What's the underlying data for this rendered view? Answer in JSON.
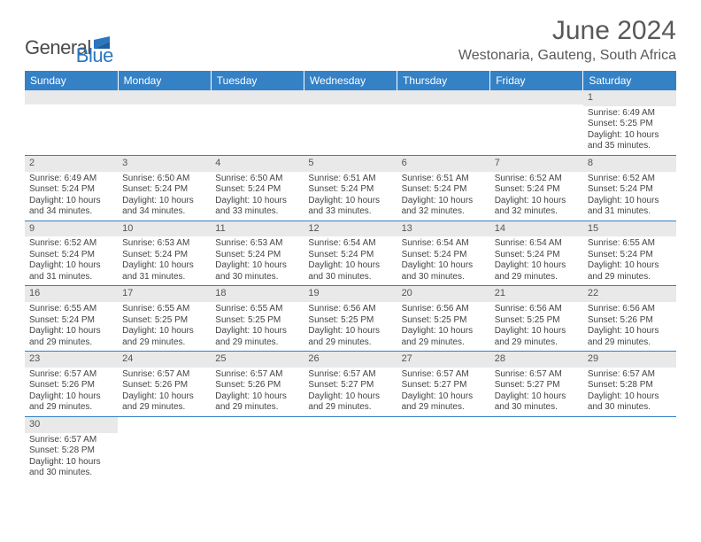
{
  "brand": {
    "name_a": "General",
    "name_b": "Blue",
    "flag_color": "#2a77c0"
  },
  "title": "June 2024",
  "location": "Westonaria, Gauteng, South Africa",
  "colors": {
    "header_bg": "#3481c6",
    "header_fg": "#ffffff",
    "daynum_bg": "#e9e9e9",
    "text": "#444444",
    "rule": "#3481c6"
  },
  "font": {
    "family": "Arial",
    "title_size_pt": 22,
    "location_size_pt": 12,
    "day_header_size_pt": 9,
    "body_size_pt": 7.5
  },
  "day_headers": [
    "Sunday",
    "Monday",
    "Tuesday",
    "Wednesday",
    "Thursday",
    "Friday",
    "Saturday"
  ],
  "weeks": [
    [
      null,
      null,
      null,
      null,
      null,
      null,
      {
        "n": "1",
        "sr": "Sunrise: 6:49 AM",
        "ss": "Sunset: 5:25 PM",
        "d1": "Daylight: 10 hours",
        "d2": "and 35 minutes."
      }
    ],
    [
      {
        "n": "2",
        "sr": "Sunrise: 6:49 AM",
        "ss": "Sunset: 5:24 PM",
        "d1": "Daylight: 10 hours",
        "d2": "and 34 minutes."
      },
      {
        "n": "3",
        "sr": "Sunrise: 6:50 AM",
        "ss": "Sunset: 5:24 PM",
        "d1": "Daylight: 10 hours",
        "d2": "and 34 minutes."
      },
      {
        "n": "4",
        "sr": "Sunrise: 6:50 AM",
        "ss": "Sunset: 5:24 PM",
        "d1": "Daylight: 10 hours",
        "d2": "and 33 minutes."
      },
      {
        "n": "5",
        "sr": "Sunrise: 6:51 AM",
        "ss": "Sunset: 5:24 PM",
        "d1": "Daylight: 10 hours",
        "d2": "and 33 minutes."
      },
      {
        "n": "6",
        "sr": "Sunrise: 6:51 AM",
        "ss": "Sunset: 5:24 PM",
        "d1": "Daylight: 10 hours",
        "d2": "and 32 minutes."
      },
      {
        "n": "7",
        "sr": "Sunrise: 6:52 AM",
        "ss": "Sunset: 5:24 PM",
        "d1": "Daylight: 10 hours",
        "d2": "and 32 minutes."
      },
      {
        "n": "8",
        "sr": "Sunrise: 6:52 AM",
        "ss": "Sunset: 5:24 PM",
        "d1": "Daylight: 10 hours",
        "d2": "and 31 minutes."
      }
    ],
    [
      {
        "n": "9",
        "sr": "Sunrise: 6:52 AM",
        "ss": "Sunset: 5:24 PM",
        "d1": "Daylight: 10 hours",
        "d2": "and 31 minutes."
      },
      {
        "n": "10",
        "sr": "Sunrise: 6:53 AM",
        "ss": "Sunset: 5:24 PM",
        "d1": "Daylight: 10 hours",
        "d2": "and 31 minutes."
      },
      {
        "n": "11",
        "sr": "Sunrise: 6:53 AM",
        "ss": "Sunset: 5:24 PM",
        "d1": "Daylight: 10 hours",
        "d2": "and 30 minutes."
      },
      {
        "n": "12",
        "sr": "Sunrise: 6:54 AM",
        "ss": "Sunset: 5:24 PM",
        "d1": "Daylight: 10 hours",
        "d2": "and 30 minutes."
      },
      {
        "n": "13",
        "sr": "Sunrise: 6:54 AM",
        "ss": "Sunset: 5:24 PM",
        "d1": "Daylight: 10 hours",
        "d2": "and 30 minutes."
      },
      {
        "n": "14",
        "sr": "Sunrise: 6:54 AM",
        "ss": "Sunset: 5:24 PM",
        "d1": "Daylight: 10 hours",
        "d2": "and 29 minutes."
      },
      {
        "n": "15",
        "sr": "Sunrise: 6:55 AM",
        "ss": "Sunset: 5:24 PM",
        "d1": "Daylight: 10 hours",
        "d2": "and 29 minutes."
      }
    ],
    [
      {
        "n": "16",
        "sr": "Sunrise: 6:55 AM",
        "ss": "Sunset: 5:24 PM",
        "d1": "Daylight: 10 hours",
        "d2": "and 29 minutes."
      },
      {
        "n": "17",
        "sr": "Sunrise: 6:55 AM",
        "ss": "Sunset: 5:25 PM",
        "d1": "Daylight: 10 hours",
        "d2": "and 29 minutes."
      },
      {
        "n": "18",
        "sr": "Sunrise: 6:55 AM",
        "ss": "Sunset: 5:25 PM",
        "d1": "Daylight: 10 hours",
        "d2": "and 29 minutes."
      },
      {
        "n": "19",
        "sr": "Sunrise: 6:56 AM",
        "ss": "Sunset: 5:25 PM",
        "d1": "Daylight: 10 hours",
        "d2": "and 29 minutes."
      },
      {
        "n": "20",
        "sr": "Sunrise: 6:56 AM",
        "ss": "Sunset: 5:25 PM",
        "d1": "Daylight: 10 hours",
        "d2": "and 29 minutes."
      },
      {
        "n": "21",
        "sr": "Sunrise: 6:56 AM",
        "ss": "Sunset: 5:25 PM",
        "d1": "Daylight: 10 hours",
        "d2": "and 29 minutes."
      },
      {
        "n": "22",
        "sr": "Sunrise: 6:56 AM",
        "ss": "Sunset: 5:26 PM",
        "d1": "Daylight: 10 hours",
        "d2": "and 29 minutes."
      }
    ],
    [
      {
        "n": "23",
        "sr": "Sunrise: 6:57 AM",
        "ss": "Sunset: 5:26 PM",
        "d1": "Daylight: 10 hours",
        "d2": "and 29 minutes."
      },
      {
        "n": "24",
        "sr": "Sunrise: 6:57 AM",
        "ss": "Sunset: 5:26 PM",
        "d1": "Daylight: 10 hours",
        "d2": "and 29 minutes."
      },
      {
        "n": "25",
        "sr": "Sunrise: 6:57 AM",
        "ss": "Sunset: 5:26 PM",
        "d1": "Daylight: 10 hours",
        "d2": "and 29 minutes."
      },
      {
        "n": "26",
        "sr": "Sunrise: 6:57 AM",
        "ss": "Sunset: 5:27 PM",
        "d1": "Daylight: 10 hours",
        "d2": "and 29 minutes."
      },
      {
        "n": "27",
        "sr": "Sunrise: 6:57 AM",
        "ss": "Sunset: 5:27 PM",
        "d1": "Daylight: 10 hours",
        "d2": "and 29 minutes."
      },
      {
        "n": "28",
        "sr": "Sunrise: 6:57 AM",
        "ss": "Sunset: 5:27 PM",
        "d1": "Daylight: 10 hours",
        "d2": "and 30 minutes."
      },
      {
        "n": "29",
        "sr": "Sunrise: 6:57 AM",
        "ss": "Sunset: 5:28 PM",
        "d1": "Daylight: 10 hours",
        "d2": "and 30 minutes."
      }
    ],
    [
      {
        "n": "30",
        "sr": "Sunrise: 6:57 AM",
        "ss": "Sunset: 5:28 PM",
        "d1": "Daylight: 10 hours",
        "d2": "and 30 minutes."
      },
      null,
      null,
      null,
      null,
      null,
      null
    ]
  ]
}
